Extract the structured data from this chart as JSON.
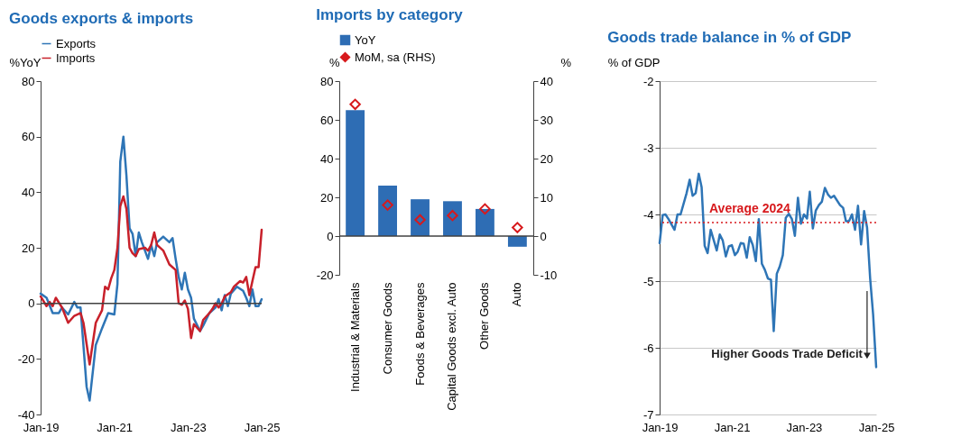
{
  "chart_data": [
    {
      "type": "line",
      "title": "Goods exports & imports",
      "ylabel": "%YoY",
      "x": [
        "2019-01",
        "2019-03",
        "2019-05",
        "2019-07",
        "2019-08",
        "2019-10",
        "2019-12",
        "2020-01",
        "2020-02",
        "2020-04",
        "2020-05",
        "2020-07",
        "2020-09",
        "2020-11",
        "2021-01",
        "2021-02",
        "2021-03",
        "2021-04",
        "2021-05",
        "2021-06",
        "2021-07",
        "2021-08",
        "2021-09",
        "2021-10",
        "2021-12",
        "2022-01",
        "2022-02",
        "2022-03",
        "2022-05",
        "2022-07",
        "2022-08",
        "2022-09",
        "2022-10",
        "2022-11",
        "2022-12",
        "2023-01",
        "2023-02",
        "2023-03",
        "2023-05",
        "2023-06",
        "2023-08",
        "2023-10",
        "2023-11",
        "2023-12",
        "2024-01",
        "2024-02",
        "2024-03",
        "2024-05",
        "2024-07",
        "2024-08",
        "2024-09",
        "2024-10",
        "2024-11",
        "2024-12",
        "2025-01"
      ],
      "series": [
        {
          "name": "Exports",
          "color": "#2e75b6",
          "values": [
            3.5,
            2,
            -3.5,
            -3.5,
            -1.5,
            -4,
            0.5,
            -1.5,
            -1.5,
            -30,
            -35,
            -15,
            -9,
            -3.5,
            -4,
            7,
            51,
            60,
            46,
            27,
            25,
            17,
            25.5,
            22,
            16,
            21,
            17,
            22,
            24,
            22,
            23.5,
            16,
            9.5,
            5,
            11,
            5,
            2,
            -5.5,
            -10,
            -8,
            -3.5,
            -1.5,
            1.5,
            -2.5,
            3,
            -1,
            3.5,
            6,
            4.5,
            2,
            -1,
            5,
            -1,
            -1,
            1.5
          ]
        },
        {
          "name": "Imports",
          "color": "#c8202a",
          "x": [
            "2019-01",
            "2019-03",
            "2019-04",
            "2019-05",
            "2019-06",
            "2019-08",
            "2019-10",
            "2019-12",
            "2020-02",
            "2020-03",
            "2020-05",
            "2020-07",
            "2020-09",
            "2020-10",
            "2020-11",
            "2020-12",
            "2021-01",
            "2021-02",
            "2021-03",
            "2021-04",
            "2021-05",
            "2021-06",
            "2021-07",
            "2021-08",
            "2021-09",
            "2021-11",
            "2021-12",
            "2022-01",
            "2022-02",
            "2022-03",
            "2022-05",
            "2022-07",
            "2022-09",
            "2022-10",
            "2022-11",
            "2022-12",
            "2023-01",
            "2023-02",
            "2023-03",
            "2023-05",
            "2023-06",
            "2023-08",
            "2023-09",
            "2023-10",
            "2023-11",
            "2023-12",
            "2024-01",
            "2024-03",
            "2024-04",
            "2024-06",
            "2024-07",
            "2024-08",
            "2024-09",
            "2024-10",
            "2024-11",
            "2024-12",
            "2025-01"
          ],
          "values": [
            2.5,
            -1,
            0.5,
            -1,
            2,
            -1.5,
            -7,
            -4.5,
            -3.5,
            -7,
            -22,
            -7,
            -2.5,
            6,
            5,
            9,
            12,
            20,
            35,
            38.5,
            34,
            20,
            18,
            17,
            19.5,
            20,
            19,
            21,
            25.5,
            21,
            19,
            14,
            12,
            0,
            -0.5,
            1,
            -2,
            -12.5,
            -7.5,
            -10,
            -6,
            -3.5,
            -2,
            0,
            -1.5,
            0,
            2.5,
            4,
            6,
            8,
            7.5,
            9.5,
            3,
            8,
            13,
            13,
            26.5
          ]
        }
      ],
      "xlim": [
        "2019-01",
        "2025-01"
      ],
      "xticks": [
        {
          "value": "2019-01",
          "label": "Jan-19"
        },
        {
          "value": "2021-01",
          "label": "Jan-21"
        },
        {
          "value": "2023-01",
          "label": "Jan-23"
        },
        {
          "value": "2025-01",
          "label": "Jan-25"
        }
      ],
      "ylim": [
        -40,
        80
      ],
      "yticks": [
        -40,
        -20,
        0,
        20,
        40,
        60,
        80
      ],
      "ref_lines": [
        {
          "axis": "y",
          "value": 0,
          "color": "#404040"
        }
      ],
      "legend": "top",
      "grid": false
    },
    {
      "type": "bar",
      "title": "Imports by category",
      "ylabel": "%",
      "y2label": "%",
      "categories": [
        "Industrial & Materials",
        "Consumer Goods",
        "Foods & Beverages",
        "Capital Goods excl. Auto",
        "Other Goods",
        "Auto"
      ],
      "series": [
        {
          "name": "YoY",
          "type": "bar",
          "color": "#2e6db4",
          "values": [
            65,
            26,
            19,
            18,
            14,
            -5.5
          ]
        },
        {
          "name": "MoM, sa (RHS)",
          "type": "scatter",
          "axis": "y2",
          "marker": "diamond",
          "color": "#d7191c",
          "values": [
            34,
            8,
            4.2,
            5.3,
            7,
            2.2
          ]
        }
      ],
      "ylim": [
        -20,
        80
      ],
      "yticks": [
        -20,
        0,
        20,
        40,
        60,
        80
      ],
      "y2lim": [
        -10,
        40
      ],
      "y2ticks": [
        -10,
        0,
        10,
        20,
        30,
        40
      ],
      "ref_lines": [
        {
          "axis": "y",
          "value": 0,
          "color": "#404040"
        }
      ],
      "legend": "top",
      "grid": false
    },
    {
      "type": "line",
      "title": "Goods trade balance in % of GDP",
      "ylabel": "% of GDP",
      "x": [
        "2019-01",
        "2019-02",
        "2019-03",
        "2019-04",
        "2019-06",
        "2019-07",
        "2019-08",
        "2019-10",
        "2019-11",
        "2019-12",
        "2020-01",
        "2020-02",
        "2020-03",
        "2020-04",
        "2020-05",
        "2020-06",
        "2020-08",
        "2020-09",
        "2020-10",
        "2020-11",
        "2020-12",
        "2021-01",
        "2021-02",
        "2021-03",
        "2021-04",
        "2021-05",
        "2021-06",
        "2021-07",
        "2021-08",
        "2021-09",
        "2021-10",
        "2021-11",
        "2021-12",
        "2022-01",
        "2022-02",
        "2022-03",
        "2022-04",
        "2022-05",
        "2022-06",
        "2022-07",
        "2022-08",
        "2022-09",
        "2022-10",
        "2022-11",
        "2022-12",
        "2023-01",
        "2023-02",
        "2023-03",
        "2023-04",
        "2023-05",
        "2023-06",
        "2023-07",
        "2023-08",
        "2023-09",
        "2023-10",
        "2023-11",
        "2024-01",
        "2024-02",
        "2024-03",
        "2024-04",
        "2024-05",
        "2024-06",
        "2024-07",
        "2024-08",
        "2024-09",
        "2024-10",
        "2024-11",
        "2024-12",
        "2025-01"
      ],
      "series": [
        {
          "color": "#2e75b6",
          "values": [
            -4.43,
            -4.01,
            -4.0,
            -4.07,
            -4.23,
            -4.0,
            -4.0,
            -3.68,
            -3.48,
            -3.72,
            -3.68,
            -3.39,
            -3.59,
            -4.47,
            -4.58,
            -4.23,
            -4.54,
            -4.3,
            -4.39,
            -4.63,
            -4.48,
            -4.46,
            -4.61,
            -4.56,
            -4.43,
            -4.44,
            -4.65,
            -4.34,
            -4.46,
            -4.7,
            -4.07,
            -4.74,
            -4.83,
            -4.96,
            -4.98,
            -5.75,
            -4.89,
            -4.78,
            -4.61,
            -4.05,
            -3.99,
            -4.07,
            -4.32,
            -3.75,
            -4.14,
            -4.0,
            -4.06,
            -3.66,
            -4.21,
            -3.94,
            -3.86,
            -3.81,
            -3.6,
            -3.7,
            -3.75,
            -3.72,
            -3.86,
            -3.9,
            -4.1,
            -4.1,
            -4.0,
            -4.23,
            -3.87,
            -4.45,
            -3.95,
            -4.2,
            -4.96,
            -5.5,
            -6.29
          ]
        }
      ],
      "xlim": [
        "2019-01",
        "2025-01"
      ],
      "xticks": [
        {
          "value": "2019-01",
          "label": "Jan-19"
        },
        {
          "value": "2021-01",
          "label": "Jan-21"
        },
        {
          "value": "2023-01",
          "label": "Jan-23"
        },
        {
          "value": "2025-01",
          "label": "Jan-25"
        }
      ],
      "ylim": [
        -7,
        -2
      ],
      "yticks": [
        -7,
        -6,
        -5,
        -4,
        -3,
        -2
      ],
      "ref_lines": [
        {
          "axis": "y",
          "value": -4.12,
          "label": "Average 2024",
          "color": "#d7191c",
          "line_style": "dotted"
        }
      ],
      "annotations": [
        {
          "text": "Higher Goods Trade Deficit",
          "x": "2024-10",
          "y": -6.1
        }
      ],
      "grid": "y"
    }
  ]
}
